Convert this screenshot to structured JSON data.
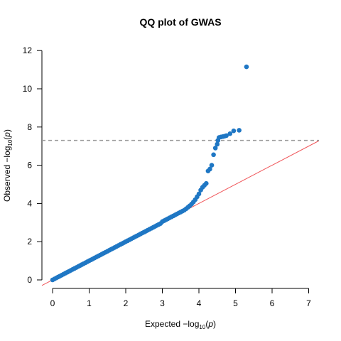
{
  "chart_data": {
    "type": "scatter",
    "title": "QQ plot of GWAS",
    "xlabel": {
      "prefix": "Expected  ",
      "minus": "−",
      "log": "log",
      "sub": "10",
      "open": "(",
      "var": "p",
      "close": ")"
    },
    "ylabel": {
      "prefix": "Observed  ",
      "minus": "−",
      "log": "log",
      "sub": "10",
      "open": "(",
      "var": "p",
      "close": ")"
    },
    "xlim": [
      0,
      7
    ],
    "ylim": [
      0,
      12
    ],
    "xticks": [
      "0",
      "1",
      "2",
      "3",
      "4",
      "5",
      "6",
      "7"
    ],
    "yticks": [
      "0",
      "2",
      "4",
      "6",
      "8",
      "10",
      "12"
    ],
    "point_color": "#1f77c4",
    "reference_line": {
      "slope": 1,
      "intercept": 0,
      "color": "#f0565a"
    },
    "threshold_line": {
      "y": 7.3,
      "color": "#999999",
      "style": "dashed"
    },
    "grid": false,
    "series": [
      {
        "x": [
          0.0,
          0.05,
          0.1,
          0.15,
          0.2,
          0.25,
          0.3,
          0.35,
          0.4,
          0.45,
          0.5,
          0.55,
          0.6,
          0.65,
          0.7,
          0.75,
          0.8,
          0.85,
          0.9,
          0.95,
          1.0,
          1.05,
          1.1,
          1.15,
          1.2,
          1.25,
          1.3,
          1.35,
          1.4,
          1.45,
          1.5,
          1.55,
          1.6,
          1.65,
          1.7,
          1.75,
          1.8,
          1.85,
          1.9,
          1.95,
          2.0,
          2.05,
          2.1,
          2.15,
          2.2,
          2.25,
          2.3,
          2.35,
          2.4,
          2.45,
          2.5,
          2.55,
          2.6,
          2.65,
          2.7,
          2.75,
          2.8,
          2.85,
          2.9,
          2.95,
          3.0,
          3.05,
          3.1,
          3.15,
          3.2,
          3.25,
          3.3,
          3.35,
          3.4,
          3.45,
          3.5,
          3.55,
          3.6,
          3.65,
          3.7,
          3.75,
          3.8,
          3.85,
          3.9,
          3.95,
          4.0,
          4.05,
          4.1,
          4.15,
          4.2,
          4.25,
          4.3,
          4.35,
          4.4,
          4.45,
          4.5,
          4.52,
          4.55,
          4.6,
          4.65,
          4.7,
          4.75,
          4.85,
          4.95,
          5.1,
          5.3
        ],
        "y": [
          0.0,
          0.05,
          0.1,
          0.15,
          0.2,
          0.25,
          0.3,
          0.35,
          0.4,
          0.45,
          0.5,
          0.55,
          0.6,
          0.65,
          0.7,
          0.75,
          0.8,
          0.85,
          0.9,
          0.95,
          1.0,
          1.05,
          1.1,
          1.15,
          1.2,
          1.25,
          1.3,
          1.35,
          1.4,
          1.45,
          1.5,
          1.55,
          1.6,
          1.65,
          1.7,
          1.75,
          1.8,
          1.85,
          1.9,
          1.95,
          2.0,
          2.05,
          2.1,
          2.15,
          2.2,
          2.25,
          2.3,
          2.35,
          2.4,
          2.45,
          2.5,
          2.55,
          2.6,
          2.65,
          2.7,
          2.75,
          2.8,
          2.85,
          2.9,
          2.95,
          3.05,
          3.1,
          3.15,
          3.2,
          3.25,
          3.3,
          3.35,
          3.4,
          3.45,
          3.5,
          3.55,
          3.6,
          3.65,
          3.72,
          3.8,
          3.88,
          3.97,
          4.08,
          4.2,
          4.35,
          4.5,
          4.7,
          4.85,
          4.95,
          5.05,
          5.7,
          5.8,
          6.0,
          6.55,
          6.9,
          7.1,
          7.3,
          7.45,
          7.48,
          7.5,
          7.52,
          7.55,
          7.65,
          7.8,
          7.83,
          11.15
        ]
      }
    ]
  }
}
